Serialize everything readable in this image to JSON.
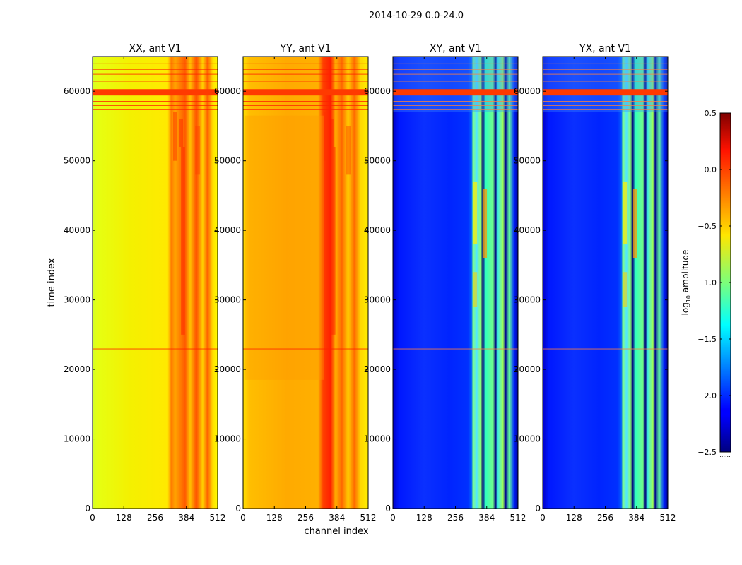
{
  "chart_data": {
    "type": "heatmap",
    "suptitle": "2014-10-29 0.0-24.0",
    "xlabel": "channel index",
    "ylabel": "time index",
    "xlim": [
      0,
      512
    ],
    "ylim": [
      0,
      65000
    ],
    "xticks": [
      0,
      128,
      256,
      384,
      512
    ],
    "yticks": [
      0,
      10000,
      20000,
      30000,
      40000,
      50000,
      60000
    ],
    "panels": [
      {
        "title": "XX, ant V1",
        "kind": "auto"
      },
      {
        "title": "YY, ant V1",
        "kind": "auto"
      },
      {
        "title": "XY, ant V1",
        "kind": "cross"
      },
      {
        "title": "YX, ant V1",
        "kind": "cross"
      }
    ],
    "colorbar": {
      "label": "log10 amplitude",
      "label_main": "log",
      "label_sub": "10",
      "label_rest": " amplitude",
      "min": -2.5,
      "max": 0.5,
      "ticks": [
        0.5,
        0.0,
        -0.5,
        -1.0,
        -1.5,
        -2.0,
        -2.5
      ],
      "tick_labels": [
        "0.5",
        "0.0",
        "−0.5",
        "−1.0",
        "−1.5",
        "−2.0",
        "−2.5"
      ],
      "colormap": "jet"
    }
  }
}
